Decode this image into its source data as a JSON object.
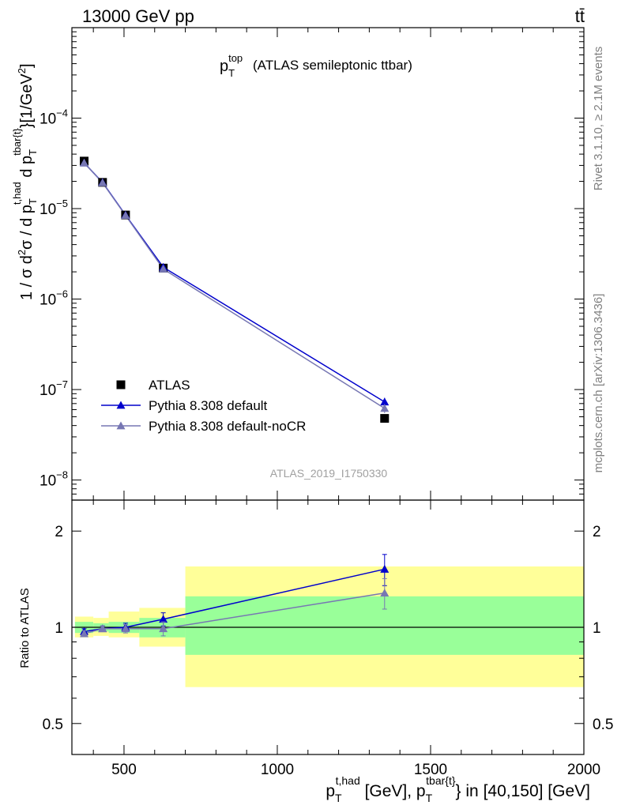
{
  "header": {
    "energy_label": "13000 GeV pp",
    "process_label": "tt̄"
  },
  "side_labels": {
    "rivet": "Rivet 3.1.10, ≥ 2.1M events",
    "mcplots": "mcplots.cern.ch [arXiv:1306.3436]"
  },
  "chart_data": [
    {
      "type": "line",
      "panel": "main",
      "title": "(ATLAS semileptonic ttbar)",
      "title_var": {
        "base": "p",
        "sub": "T",
        "sup": "top"
      },
      "ylabel": "1 / σ d²σ / d p_T^{t,had} d p_T^{tbar{t}}[1/GeV²]",
      "yscale": "log",
      "ylim": [
        6e-09,
        0.001
      ],
      "xlim": [
        330,
        2000
      ],
      "yticks": [
        {
          "value": 1e-08,
          "mant": "10",
          "exp": "−8"
        },
        {
          "value": 1e-07,
          "mant": "10",
          "exp": "−7"
        },
        {
          "value": 1e-06,
          "mant": "10",
          "exp": "−6"
        },
        {
          "value": 1e-05,
          "mant": "10",
          "exp": "−5"
        },
        {
          "value": 0.0001,
          "mant": "10",
          "exp": "−4"
        }
      ],
      "watermark": "ATLAS_2019_I1750330",
      "legend_position": "bottom-left",
      "x": [
        370,
        430,
        505,
        628,
        1350
      ],
      "series": [
        {
          "name": "ATLAS",
          "color": "#000000",
          "marker": "square",
          "values": [
            3.35e-05,
            1.95e-05,
            8.5e-06,
            2.2e-06,
            4.8e-08
          ]
        },
        {
          "name": "Pythia 8.308 default",
          "color": "#0000cc",
          "marker": "triangle",
          "values": [
            3.2e-05,
            1.95e-05,
            8.5e-06,
            2.25e-06,
            7.3e-08
          ],
          "errors": [
            0,
            0,
            0,
            0,
            8e-09
          ]
        },
        {
          "name": "Pythia 8.308 default-noCR",
          "color": "#7777b3",
          "marker": "triangle",
          "values": [
            3.2e-05,
            1.93e-05,
            8.4e-06,
            2.15e-06,
            6.2e-08
          ],
          "errors": [
            0,
            0,
            0,
            0,
            7e-09
          ]
        }
      ]
    },
    {
      "type": "line",
      "panel": "ratio",
      "ylabel": "Ratio to ATLAS",
      "yscale": "log",
      "ylim": [
        0.4,
        2.5
      ],
      "xlim": [
        330,
        2000
      ],
      "yticks": [
        {
          "value": 0.5,
          "label": "0.5"
        },
        {
          "value": 1,
          "label": "1"
        },
        {
          "value": 2,
          "label": "2"
        }
      ],
      "xticks": [
        {
          "value": 500,
          "label": "500"
        },
        {
          "value": 1000,
          "label": "1000"
        },
        {
          "value": 1500,
          "label": "1500"
        },
        {
          "value": 2000,
          "label": "2000"
        }
      ],
      "xlabel": "p_T^{t,had} [GeV], p_T^{tbar{t}} in [40,150] [GeV]",
      "bands": [
        {
          "x0": 340,
          "x1": 400,
          "stat_lo": 0.96,
          "stat_hi": 1.04,
          "tot_lo": 0.93,
          "tot_hi": 1.08
        },
        {
          "x0": 400,
          "x1": 450,
          "stat_lo": 0.97,
          "stat_hi": 1.03,
          "tot_lo": 0.94,
          "tot_hi": 1.07
        },
        {
          "x0": 450,
          "x1": 550,
          "stat_lo": 0.96,
          "stat_hi": 1.04,
          "tot_lo": 0.93,
          "tot_hi": 1.12
        },
        {
          "x0": 550,
          "x1": 700,
          "stat_lo": 0.93,
          "stat_hi": 1.07,
          "tot_lo": 0.87,
          "tot_hi": 1.15
        },
        {
          "x0": 700,
          "x1": 2000,
          "stat_lo": 0.82,
          "stat_hi": 1.25,
          "tot_lo": 0.65,
          "tot_hi": 1.55
        }
      ],
      "band_colors": {
        "stat": "#99ff99",
        "total": "#ffff99"
      },
      "x": [
        370,
        430,
        505,
        628,
        1350
      ],
      "series": [
        {
          "name": "Pythia 8.308 default",
          "color": "#0000cc",
          "values": [
            0.97,
            0.99,
            1.0,
            1.06,
            1.52
          ],
          "errors": [
            0.02,
            0.02,
            0.03,
            0.05,
            0.17
          ]
        },
        {
          "name": "Pythia 8.308 default-noCR",
          "color": "#7777b3",
          "values": [
            0.955,
            0.99,
            0.99,
            0.99,
            1.28
          ],
          "errors": [
            0.02,
            0.02,
            0.03,
            0.05,
            0.14
          ]
        }
      ]
    }
  ]
}
